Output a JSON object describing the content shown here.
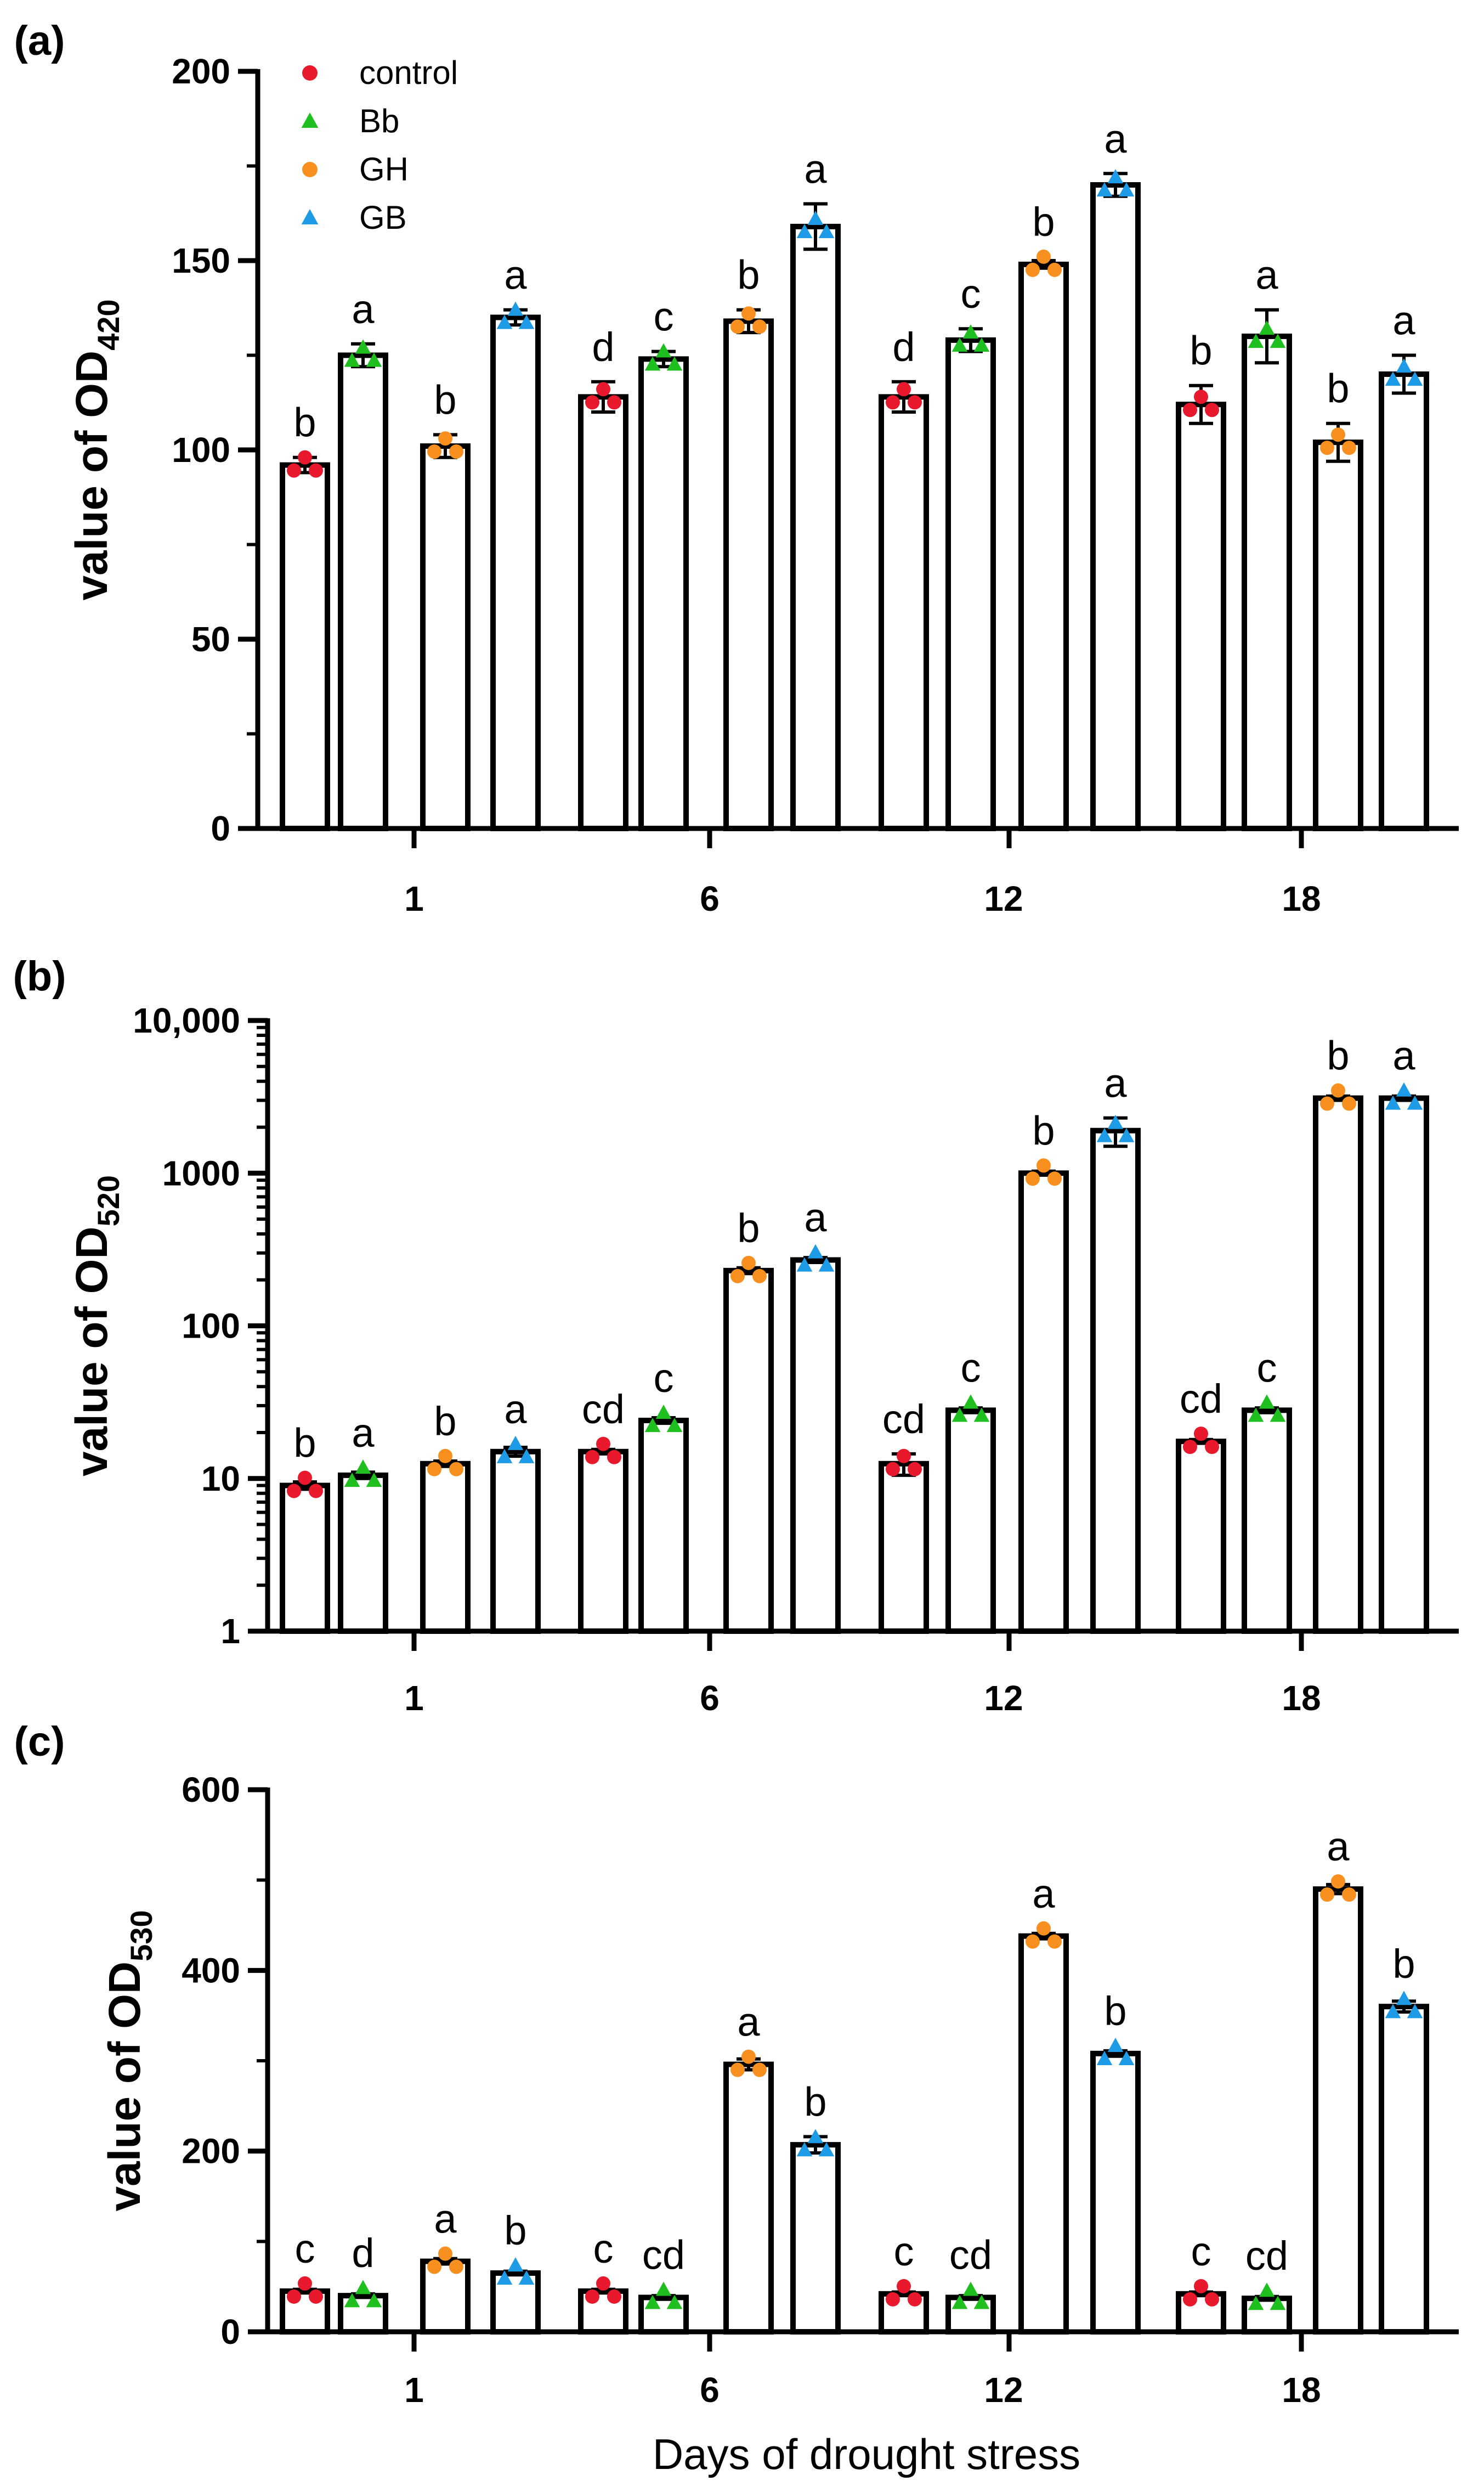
{
  "colors": {
    "control": "#e8192c",
    "Bb": "#1fbf1f",
    "GH": "#f7901e",
    "GB": "#1e9be6"
  },
  "legend": [
    {
      "name": "control",
      "marker": "circle"
    },
    {
      "name": "Bb",
      "marker": "triangle"
    },
    {
      "name": "GH",
      "marker": "circle"
    },
    {
      "name": "GB",
      "marker": "triangle"
    }
  ],
  "xlabel": "Days of drought stress",
  "chart_data": [
    {
      "type": "bar",
      "panel_label": "(a)",
      "ylabel_main": "value of OD",
      "ylabel_sub": "420",
      "scale": "linear",
      "ylim": [
        0,
        200
      ],
      "yticks": [
        0,
        50,
        100,
        150,
        200
      ],
      "ytick_labels": [
        "0",
        "50",
        "100",
        "150",
        "200"
      ],
      "categories": [
        "1",
        "6",
        "12",
        "18"
      ],
      "legend": true,
      "series": [
        {
          "name": "control",
          "values": [
            96,
            114,
            114,
            112
          ],
          "errors": [
            2,
            4,
            4,
            5
          ],
          "letters": [
            "b",
            "d",
            "d",
            "b"
          ]
        },
        {
          "name": "Bb",
          "values": [
            125,
            124,
            129,
            130
          ],
          "errors": [
            3,
            2,
            3,
            7
          ],
          "letters": [
            "a",
            "c",
            "c",
            "a"
          ]
        },
        {
          "name": "GH",
          "values": [
            101,
            134,
            149,
            102
          ],
          "errors": [
            3,
            3,
            1,
            5
          ],
          "letters": [
            "b",
            "b",
            "b",
            "b"
          ]
        },
        {
          "name": "GB",
          "values": [
            135,
            159,
            170,
            120
          ],
          "errors": [
            2,
            6,
            3,
            5
          ],
          "letters": [
            "a",
            "a",
            "a",
            "a"
          ]
        }
      ]
    },
    {
      "type": "bar",
      "panel_label": "(b)",
      "ylabel_main": "value of OD",
      "ylabel_sub": "520",
      "scale": "log",
      "ylim": [
        1,
        10000
      ],
      "yticks": [
        1,
        10,
        100,
        1000,
        10000
      ],
      "ytick_labels": [
        "1",
        "10",
        "100",
        "1000",
        "10,000"
      ],
      "categories": [
        "1",
        "6",
        "12",
        "18"
      ],
      "legend": false,
      "series": [
        {
          "name": "control",
          "values": [
            9,
            15,
            12.5,
            17.5
          ],
          "errors": [
            0.5,
            0.5,
            2,
            0.5
          ],
          "letters": [
            "b",
            "cd",
            "cd",
            "cd"
          ]
        },
        {
          "name": "Bb",
          "values": [
            10.5,
            24,
            28,
            28
          ],
          "errors": [
            0.5,
            1,
            1,
            1
          ],
          "letters": [
            "a",
            "c",
            "c",
            "c"
          ]
        },
        {
          "name": "GH",
          "values": [
            12.5,
            230,
            1000,
            3100
          ],
          "errors": [
            0.5,
            10,
            30,
            100
          ],
          "letters": [
            "b",
            "b",
            "b",
            "b"
          ]
        },
        {
          "name": "GB",
          "values": [
            15,
            270,
            1900,
            3100
          ],
          "errors": [
            1,
            10,
            400,
            100
          ],
          "letters": [
            "a",
            "a",
            "a",
            "a"
          ]
        }
      ]
    },
    {
      "type": "bar",
      "panel_label": "(c)",
      "ylabel_main": "value of OD",
      "ylabel_sub": "530",
      "scale": "linear",
      "ylim": [
        0,
        600
      ],
      "yticks": [
        0,
        200,
        400,
        600
      ],
      "ytick_labels": [
        "0",
        "200",
        "400",
        "600"
      ],
      "categories": [
        "1",
        "6",
        "12",
        "18"
      ],
      "legend": false,
      "series": [
        {
          "name": "control",
          "values": [
            45,
            45,
            42,
            42
          ],
          "errors": [
            2,
            2,
            2,
            2
          ],
          "letters": [
            "c",
            "c",
            "c",
            "c"
          ]
        },
        {
          "name": "Bb",
          "values": [
            40,
            38,
            38,
            37
          ],
          "errors": [
            2,
            2,
            2,
            2
          ],
          "letters": [
            "d",
            "cd",
            "cd",
            "cd"
          ]
        },
        {
          "name": "GH",
          "values": [
            78,
            296,
            438,
            490
          ],
          "errors": [
            3,
            6,
            3,
            5
          ],
          "letters": [
            "a",
            "a",
            "a",
            "a"
          ]
        },
        {
          "name": "GB",
          "values": [
            65,
            207,
            308,
            360
          ],
          "errors": [
            2,
            9,
            3,
            6
          ],
          "letters": [
            "b",
            "b",
            "b",
            "b"
          ]
        }
      ]
    }
  ]
}
